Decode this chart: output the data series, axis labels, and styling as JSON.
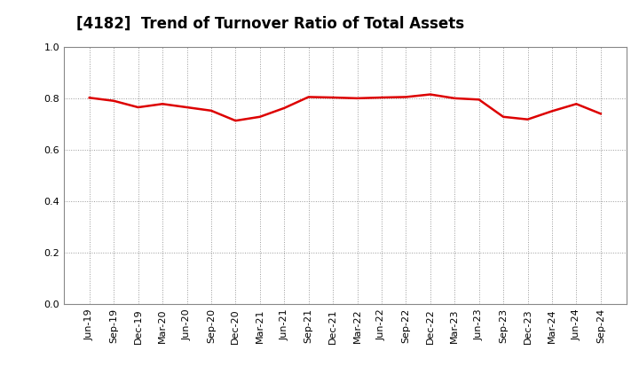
{
  "title": "[4182]  Trend of Turnover Ratio of Total Assets",
  "x_labels": [
    "Jun-19",
    "Sep-19",
    "Dec-19",
    "Mar-20",
    "Jun-20",
    "Sep-20",
    "Dec-20",
    "Mar-21",
    "Jun-21",
    "Sep-21",
    "Dec-21",
    "Mar-22",
    "Jun-22",
    "Sep-22",
    "Dec-22",
    "Mar-23",
    "Jun-23",
    "Sep-23",
    "Dec-23",
    "Mar-24",
    "Jun-24",
    "Sep-24"
  ],
  "values": [
    0.802,
    0.79,
    0.765,
    0.778,
    0.765,
    0.752,
    0.713,
    0.728,
    0.762,
    0.805,
    0.803,
    0.8,
    0.803,
    0.805,
    0.815,
    0.8,
    0.795,
    0.728,
    0.718,
    0.75,
    0.778,
    0.74
  ],
  "line_color": "#dd0000",
  "line_width": 1.8,
  "background_color": "#ffffff",
  "plot_bg_color": "#ffffff",
  "grid_color": "#999999",
  "ylim": [
    0.0,
    1.0
  ],
  "yticks": [
    0.0,
    0.2,
    0.4,
    0.6,
    0.8,
    1.0
  ],
  "title_fontsize": 12,
  "tick_fontsize": 8
}
